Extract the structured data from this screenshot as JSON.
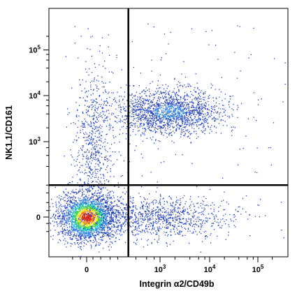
{
  "chart_data": {
    "type": "scatter",
    "subtype": "flow-cytometry-density-dot-plot",
    "xlabel": "Integrin α2/CD49b",
    "ylabel": "NK1.1/CD161",
    "x_scale": "biexponential",
    "y_scale": "biexponential",
    "x_ticks": [
      {
        "value": 0,
        "base": "0",
        "exp": ""
      },
      {
        "value": 1000,
        "base": "10",
        "exp": "3"
      },
      {
        "value": 10000,
        "base": "10",
        "exp": "4"
      },
      {
        "value": 100000,
        "base": "10",
        "exp": "5"
      }
    ],
    "y_ticks": [
      {
        "value": 0,
        "base": "0",
        "exp": ""
      },
      {
        "value": 1000,
        "base": "10",
        "exp": "3"
      },
      {
        "value": 10000,
        "base": "10",
        "exp": "4"
      },
      {
        "value": 100000,
        "base": "10",
        "exp": "5"
      }
    ],
    "quadrant_gates": {
      "x": 300,
      "y": 200
    },
    "populations": [
      {
        "name_hidden": true,
        "center": [
          0,
          0
        ],
        "spread": "dense",
        "relative_density": "highest"
      },
      {
        "name_hidden": true,
        "center": [
          1500,
          4500
        ],
        "spread": "medium",
        "relative_density": "high"
      },
      {
        "name_hidden": true,
        "center": [
          800,
          0
        ],
        "spread": "wide",
        "relative_density": "low"
      },
      {
        "name_hidden": true,
        "center": [
          0,
          1000
        ],
        "spread": "sparse",
        "relative_density": "low"
      }
    ],
    "color_scale": [
      "#1f3fbf",
      "#2f7fe0",
      "#20c0c0",
      "#40d040",
      "#f0e020",
      "#f08020",
      "#e02010"
    ],
    "grid": false,
    "legend": "none"
  }
}
